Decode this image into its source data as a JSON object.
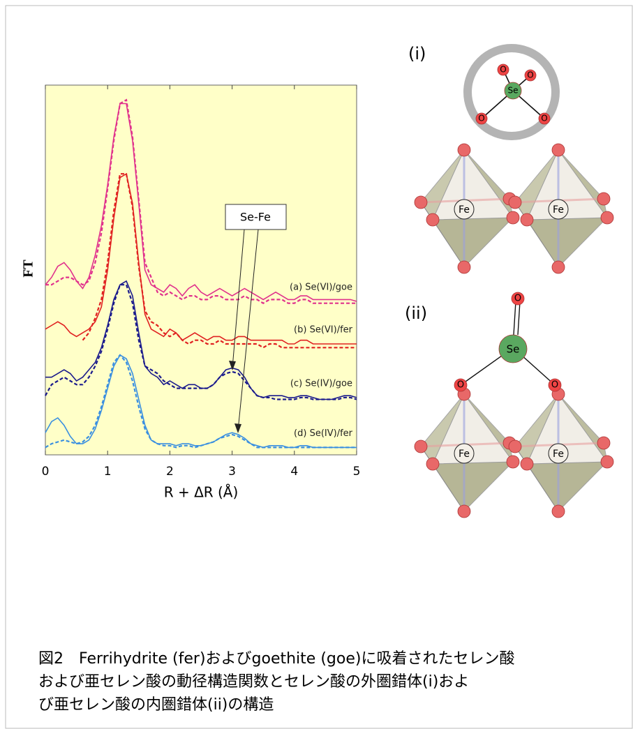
{
  "chart_data": {
    "type": "line",
    "xlabel": "R + ΔR (Å)",
    "ylabel": "FT",
    "xlim": [
      0,
      5
    ],
    "xticks": [
      0,
      1,
      2,
      3,
      4,
      5
    ],
    "ylim": [
      0,
      10
    ],
    "x": [
      0,
      0.1,
      0.2,
      0.3,
      0.4,
      0.5,
      0.6,
      0.7,
      0.8,
      0.9,
      1,
      1.1,
      1.2,
      1.3,
      1.4,
      1.5,
      1.6,
      1.7,
      1.8,
      1.9,
      2,
      2.1,
      2.2,
      2.3,
      2.4,
      2.5,
      2.6,
      2.7,
      2.8,
      2.9,
      3,
      3.1,
      3.2,
      3.3,
      3.4,
      3.5,
      3.6,
      3.7,
      3.8,
      3.9,
      4,
      4.1,
      4.2,
      4.3,
      4.4,
      4.5,
      4.6,
      4.7,
      4.8,
      4.9,
      5
    ],
    "series": [
      {
        "name": "(a) Se(VI)/goe",
        "color": "#e0308c",
        "values": [
          4.6,
          4.8,
          5.1,
          5.2,
          5.0,
          4.7,
          4.5,
          4.8,
          5.4,
          6.2,
          7.3,
          8.6,
          9.5,
          9.5,
          8.5,
          6.8,
          5.0,
          4.6,
          4.5,
          4.4,
          4.6,
          4.5,
          4.3,
          4.5,
          4.6,
          4.4,
          4.3,
          4.4,
          4.5,
          4.4,
          4.3,
          4.4,
          4.5,
          4.4,
          4.3,
          4.2,
          4.3,
          4.4,
          4.3,
          4.2,
          4.2,
          4.3,
          4.3,
          4.2,
          4.2,
          4.2,
          4.2,
          4.2,
          4.2,
          4.2,
          4.15
        ],
        "fit_values": [
          4.6,
          4.6,
          4.7,
          4.8,
          4.8,
          4.7,
          4.6,
          4.7,
          5.2,
          6.0,
          7.2,
          8.5,
          9.5,
          9.6,
          8.6,
          6.9,
          5.2,
          4.8,
          4.4,
          4.3,
          4.4,
          4.3,
          4.2,
          4.3,
          4.3,
          4.2,
          4.2,
          4.3,
          4.3,
          4.2,
          4.2,
          4.2,
          4.3,
          4.2,
          4.2,
          4.1,
          4.2,
          4.2,
          4.2,
          4.1,
          4.1,
          4.2,
          4.2,
          4.1,
          4.1,
          4.1,
          4.1,
          4.1,
          4.1,
          4.1,
          4.1
        ]
      },
      {
        "name": "(b) Se(VI)/fer",
        "color": "#e02020",
        "values": [
          3.4,
          3.5,
          3.6,
          3.5,
          3.3,
          3.2,
          3.3,
          3.4,
          3.6,
          4.0,
          5.0,
          6.4,
          7.5,
          7.6,
          6.8,
          5.2,
          3.8,
          3.4,
          3.3,
          3.2,
          3.4,
          3.3,
          3.1,
          3.2,
          3.3,
          3.2,
          3.1,
          3.2,
          3.2,
          3.1,
          3.1,
          3.2,
          3.2,
          3.1,
          3.1,
          3.1,
          3.1,
          3.1,
          3.1,
          3.0,
          3.0,
          3.1,
          3.1,
          3.0,
          3.0,
          3.0,
          3.0,
          3.0,
          3.0,
          3.0,
          3.0
        ],
        "fit_values": [
          null,
          null,
          null,
          null,
          null,
          null,
          3.1,
          3.3,
          3.7,
          4.2,
          5.2,
          6.6,
          7.6,
          7.6,
          6.7,
          5.1,
          3.9,
          3.6,
          3.5,
          3.3,
          3.2,
          3.3,
          3.1,
          3.0,
          3.1,
          3.1,
          3.0,
          3.0,
          3.1,
          3.0,
          3.0,
          3.0,
          3.0,
          3.0,
          3.0,
          2.9,
          3.0,
          3.0,
          2.9,
          2.9,
          2.9,
          2.9,
          2.9,
          2.9,
          2.9,
          2.9,
          2.9,
          2.9,
          2.9,
          2.9,
          2.9
        ]
      },
      {
        "name": "(c) Se(IV)/goe",
        "color": "#1a1a8c",
        "values": [
          2.1,
          2.1,
          2.2,
          2.3,
          2.2,
          2.0,
          2.1,
          2.3,
          2.5,
          2.9,
          3.5,
          4.2,
          4.6,
          4.7,
          4.3,
          3.3,
          2.4,
          2.2,
          2.1,
          1.9,
          2.0,
          1.9,
          1.8,
          1.9,
          1.9,
          1.8,
          1.8,
          1.9,
          2.1,
          2.3,
          2.35,
          2.3,
          2.1,
          1.8,
          1.6,
          1.55,
          1.6,
          1.6,
          1.6,
          1.55,
          1.55,
          1.6,
          1.6,
          1.55,
          1.5,
          1.5,
          1.5,
          1.55,
          1.6,
          1.6,
          1.55
        ],
        "fit_values": [
          1.6,
          1.9,
          2.0,
          2.1,
          2.0,
          1.9,
          1.9,
          2.1,
          2.4,
          2.8,
          3.4,
          4.1,
          4.6,
          4.6,
          4.1,
          3.1,
          2.4,
          2.3,
          2.2,
          2.0,
          1.9,
          1.8,
          1.8,
          1.8,
          1.8,
          1.8,
          1.8,
          1.9,
          2.1,
          2.2,
          2.25,
          2.2,
          2.0,
          1.8,
          1.6,
          1.55,
          1.55,
          1.5,
          1.5,
          1.5,
          1.5,
          1.55,
          1.55,
          1.5,
          1.5,
          1.5,
          1.5,
          1.5,
          1.55,
          1.55,
          1.5
        ]
      },
      {
        "name": "(d) Se(IV)/fer",
        "color": "#3a8fe0",
        "values": [
          0.6,
          0.9,
          1.0,
          0.8,
          0.5,
          0.3,
          0.3,
          0.4,
          0.7,
          1.2,
          1.8,
          2.4,
          2.7,
          2.6,
          2.2,
          1.5,
          0.8,
          0.4,
          0.3,
          0.3,
          0.3,
          0.25,
          0.3,
          0.3,
          0.25,
          0.25,
          0.3,
          0.35,
          0.45,
          0.55,
          0.6,
          0.55,
          0.45,
          0.3,
          0.25,
          0.2,
          0.25,
          0.25,
          0.25,
          0.2,
          0.2,
          0.25,
          0.25,
          0.2,
          0.2,
          0.2,
          0.2,
          0.2,
          0.2,
          0.2,
          0.2
        ],
        "fit_values": [
          0.2,
          0.3,
          0.35,
          0.4,
          0.35,
          0.3,
          0.35,
          0.5,
          0.8,
          1.3,
          1.9,
          2.5,
          2.7,
          2.5,
          2.0,
          1.3,
          0.7,
          0.4,
          0.3,
          0.25,
          0.25,
          0.2,
          0.25,
          0.25,
          0.2,
          0.25,
          0.3,
          0.35,
          0.45,
          0.5,
          0.55,
          0.5,
          0.4,
          0.3,
          0.2,
          0.2,
          0.2,
          0.2,
          0.2,
          0.2,
          0.2,
          0.2,
          0.2,
          0.2,
          0.2,
          0.2,
          0.2,
          0.2,
          0.2,
          0.2,
          0.2
        ]
      }
    ],
    "annotation": "Se-Fe",
    "background": "#ffffc8"
  },
  "diagram": {
    "panel_i": {
      "label": "(i)",
      "center": "Se",
      "ligands": [
        "O",
        "O",
        "O",
        "O"
      ],
      "metals": [
        "Fe",
        "Fe"
      ]
    },
    "panel_ii": {
      "label": "(ii)",
      "center": "Se",
      "oxygens": [
        "O",
        "O",
        "O"
      ],
      "metals": [
        "Fe",
        "Fe"
      ]
    }
  },
  "caption": [
    "図2　Ferrihydrite (fer)およびgoethite (goe)に吸着されたセレン酸",
    "および亜セレン酸の動径構造関数とセレン酸の外圏錯体(i)およ",
    "び亜セレン酸の内圏錯体(ii)の構造"
  ]
}
